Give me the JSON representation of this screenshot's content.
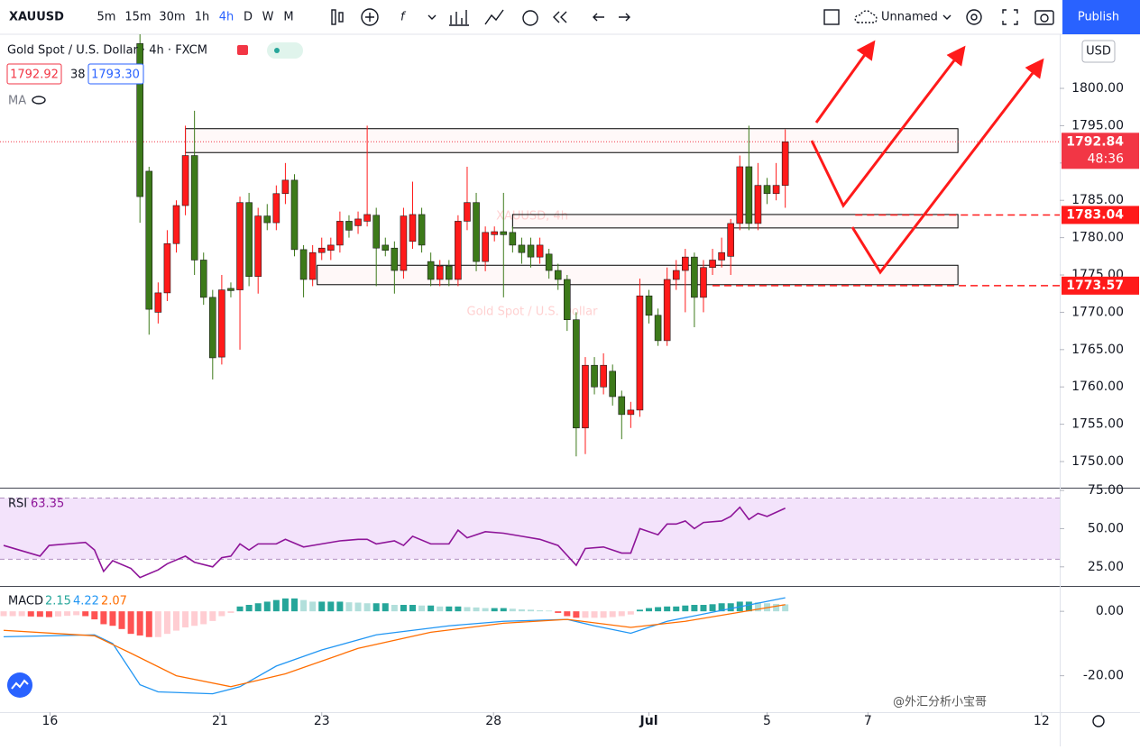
{
  "toolbar": {
    "symbol": "XAUUSD",
    "intervals": [
      "5m",
      "15m",
      "30m",
      "1h",
      "4h",
      "D",
      "W",
      "M"
    ],
    "active_interval": 4,
    "layout_name": "Unnamed",
    "publish": "Publish"
  },
  "legend": {
    "title": "Gold Spot / U.S. Dollar · 4h · FXCM",
    "bid": 1792.92,
    "spread": 38,
    "ask": "1793.30",
    "ma": "MA"
  },
  "watermark": {
    "symbol": "XAUUSD, 4h",
    "description": "Gold Spot / U.S. Dollar"
  },
  "currency": "USD",
  "countdown": "48:36",
  "credit": "@外汇分析小宝哥",
  "chart_data": [
    {
      "type": "candlestick",
      "open": [
        1806,
        1788.9,
        1770,
        1772.6,
        1779.2,
        1784.3,
        1791,
        1777,
        1772,
        1764,
        1773.2,
        1773,
        1784.7,
        1774.8,
        1782.9,
        1782,
        1785.9,
        1787.7,
        1778.4,
        1774.4,
        1778,
        1778.3,
        1779,
        1782.2,
        1781.6,
        1782.2,
        1783,
        1779,
        1778.6,
        1775.6,
        1779.5,
        1783.1,
        1776.8,
        1774.4,
        1776.2,
        1774.4,
        1782.2,
        1784.7,
        1776.8,
        1780.4,
        1780.8,
        1780.7,
        1779,
        1779,
        1777.4,
        1777.8,
        1775.6,
        1774.4,
        1769,
        1754.5,
        1762.9,
        1760,
        1762.1,
        1758.7,
        1756.3,
        1756.9,
        1772.2,
        1769.6,
        1766.2,
        1774.4,
        1775.6,
        1777.4,
        1772,
        1776,
        1777,
        1777.5,
        1781.9,
        1789.5,
        1781.9,
        1787,
        1785.9,
        1787
      ],
      "high": [
        1808,
        1789.5,
        1774,
        1781,
        1785,
        1795,
        1797,
        1778,
        1773,
        1775,
        1774,
        1785.5,
        1786,
        1784,
        1784.5,
        1787,
        1790,
        1788.5,
        1779,
        1779,
        1780,
        1780,
        1783.5,
        1783,
        1783.5,
        1795,
        1784,
        1780,
        1779.5,
        1784,
        1787.5,
        1784,
        1778,
        1777,
        1777,
        1783,
        1789.5,
        1786,
        1781.5,
        1781.5,
        1786,
        1781.5,
        1780,
        1780,
        1780,
        1778.5,
        1776.5,
        1775,
        1770,
        1764,
        1764,
        1764.5,
        1763,
        1759.5,
        1758,
        1774.5,
        1773,
        1770.5,
        1776,
        1777,
        1778.5,
        1778,
        1777,
        1778.5,
        1780,
        1782.5,
        1791,
        1795,
        1790,
        1788,
        1790,
        1794.5
      ],
      "low": [
        1782,
        1767,
        1768.5,
        1771.5,
        1778,
        1783,
        1775,
        1771,
        1761,
        1763,
        1772,
        1765,
        1773.5,
        1772.5,
        1781,
        1781,
        1784.5,
        1777.5,
        1772,
        1773.5,
        1777,
        1777,
        1778,
        1780,
        1780.5,
        1781.5,
        1773.5,
        1777.5,
        1772.5,
        1774.5,
        1778.5,
        1778,
        1773.5,
        1773.5,
        1773.5,
        1773.5,
        1781,
        1775.5,
        1775.5,
        1779.5,
        1772,
        1778,
        1776.5,
        1776,
        1776.5,
        1774.5,
        1773,
        1767.5,
        1750.7,
        1751,
        1759,
        1759,
        1757.5,
        1753,
        1754.5,
        1756,
        1768.5,
        1765.5,
        1765.5,
        1773,
        1770,
        1768,
        1770,
        1775,
        1776,
        1775,
        1781,
        1781,
        1781,
        1784.5,
        1785,
        1784
      ],
      "close": [
        1785.5,
        1770.4,
        1772.6,
        1779.2,
        1784.3,
        1791,
        1777,
        1772,
        1763.9,
        1773,
        1772.9,
        1784.7,
        1774.8,
        1782.9,
        1782,
        1785.9,
        1787.7,
        1778.4,
        1774.4,
        1778,
        1778.6,
        1779,
        1782.2,
        1781,
        1782.5,
        1783.1,
        1778.6,
        1778.3,
        1775.6,
        1782.9,
        1783.1,
        1779,
        1774.4,
        1776.2,
        1774.4,
        1782.2,
        1784.7,
        1776.8,
        1780.7,
        1780.8,
        1780.4,
        1779,
        1778,
        1777.4,
        1779,
        1775.6,
        1774.4,
        1769,
        1754.5,
        1762.9,
        1760,
        1762.9,
        1758.7,
        1756.3,
        1756.9,
        1772.2,
        1769.6,
        1766.2,
        1774.4,
        1775.6,
        1777.4,
        1772,
        1776,
        1777,
        1778,
        1781.9,
        1789.5,
        1781.9,
        1787,
        1785.9,
        1787,
        1792.84
      ],
      "up_color": "#ff1a1a",
      "down_color": "#3d7a1a",
      "last_price_color": "#f23645",
      "xlim": [
        -15.4,
        101.2
      ],
      "ylim": [
        1746.5,
        1807.25
      ],
      "yticks": [
        {
          "value": 1750,
          "label": "1750.00"
        },
        {
          "value": 1755,
          "label": "1755.00"
        },
        {
          "value": 1760,
          "label": "1760.00"
        },
        {
          "value": 1765,
          "label": "1765.00"
        },
        {
          "value": 1770,
          "label": "1770.00"
        },
        {
          "value": 1775,
          "label": "1775.00"
        },
        {
          "value": 1780,
          "label": "1780.00"
        },
        {
          "value": 1785,
          "label": "1785.00"
        },
        {
          "value": 1790,
          "label": "1790.00"
        },
        {
          "value": 1795,
          "label": "1795.00"
        },
        {
          "value": 1800,
          "label": "1800.00"
        }
      ],
      "xticks": [
        {
          "value": -9.9,
          "label": "16"
        },
        {
          "value": 8.8,
          "label": "21"
        },
        {
          "value": 20,
          "label": "23"
        },
        {
          "value": 38.9,
          "label": "28"
        },
        {
          "value": 56,
          "label": "Jul"
        },
        {
          "value": 69,
          "label": "5"
        },
        {
          "value": 80.1,
          "label": "7"
        },
        {
          "value": 99.2,
          "label": "12"
        }
      ],
      "horizontal_lines": [
        {
          "value": 1783.04,
          "x": 78.7
        },
        {
          "value": 1773.57,
          "x": 63
        }
      ],
      "zones": [
        {
          "y": [
            1791.4,
            1794.6
          ],
          "x": [
            5,
            90
          ]
        },
        {
          "y": [
            1781.3,
            1783.1
          ],
          "x": [
            41,
            90
          ]
        },
        {
          "y": [
            1773.7,
            1776.3
          ],
          "x": [
            19.5,
            90
          ]
        }
      ]
    },
    {
      "type": "line",
      "name": "RSI",
      "color": "#8e1599",
      "x": [
        -15,
        -11,
        -10,
        -8,
        -6,
        -5,
        -4,
        -3,
        -1,
        0,
        2,
        3,
        5,
        6,
        8,
        9,
        10,
        11,
        12,
        13,
        15,
        16,
        18,
        20,
        22,
        24,
        25,
        26,
        28,
        29,
        30,
        32,
        34,
        35,
        36,
        38,
        40,
        42,
        44,
        46,
        48,
        49,
        51,
        53,
        54,
        55,
        57,
        58,
        59,
        60,
        61,
        62,
        64,
        65,
        66,
        67,
        68,
        69,
        71
      ],
      "values": [
        39,
        32,
        39,
        40,
        41,
        36,
        22,
        29,
        24,
        18,
        23,
        27,
        32,
        28,
        25,
        31,
        32,
        40,
        36,
        40,
        40,
        43,
        38,
        40,
        42,
        43,
        43,
        40,
        42,
        39,
        45,
        40,
        40,
        49,
        44,
        48,
        47,
        45,
        43,
        39,
        26,
        37,
        38,
        34,
        34,
        50,
        46,
        53,
        53,
        55,
        50,
        54,
        55,
        58,
        64,
        56,
        60,
        58,
        63.35
      ],
      "band": [
        30,
        70
      ],
      "band_color": "#f3e3fb",
      "ylim": [
        12.5,
        76.2
      ],
      "yticks": [
        {
          "value": 25,
          "label": "25.00"
        },
        {
          "value": 50,
          "label": "50.00"
        },
        {
          "value": 75,
          "label": "75.00"
        }
      ]
    },
    {
      "type": "macd",
      "name": "MACD",
      "series": [
        {
          "x": [
            -15,
            -14,
            -13,
            -12,
            -11,
            -10,
            -9,
            -8,
            -7,
            -6,
            -5,
            -4,
            -3,
            -2,
            -1,
            0,
            1,
            2,
            3,
            4,
            5,
            6,
            7,
            8,
            9,
            10,
            11,
            12,
            13,
            14,
            15,
            16,
            17,
            18,
            19,
            20,
            21,
            22,
            23,
            24,
            25,
            26,
            27,
            28,
            29,
            30,
            31,
            32,
            33,
            34,
            35,
            36,
            37,
            38,
            39,
            40,
            41,
            42,
            43,
            44,
            45,
            46,
            47,
            48,
            49,
            50,
            51,
            52,
            53,
            54,
            55,
            56,
            57,
            58,
            59,
            60,
            61,
            62,
            63,
            64,
            65,
            66,
            67,
            68,
            69,
            70,
            71
          ],
          "values": [
            -1.5,
            -1.5,
            -1.5,
            -1.6,
            -1.7,
            -1.8,
            -1.6,
            -1.4,
            -1.2,
            -1.5,
            -2.5,
            -4,
            -4.5,
            -5.5,
            -7,
            -7.5,
            -8,
            -8,
            -7,
            -6,
            -5,
            -4.5,
            -4,
            -3,
            -1.5,
            -0.5,
            1.5,
            2,
            2.5,
            3,
            3.5,
            4,
            4,
            3.5,
            3,
            3,
            3,
            3,
            2.8,
            2.7,
            2.5,
            2.5,
            2.5,
            2,
            2,
            2,
            1.8,
            1.8,
            1.5,
            1.5,
            1.5,
            1.3,
            1.2,
            1,
            1,
            1,
            0.8,
            0.6,
            0.5,
            0.3,
            0.2,
            -0.5,
            -1.5,
            -2,
            -2,
            -2,
            -2,
            -1.8,
            -1.5,
            -1,
            0.5,
            1,
            1.3,
            1.5,
            1.5,
            1.8,
            2,
            2,
            2.2,
            2.5,
            2.5,
            3,
            3,
            2.8,
            2.5,
            2.3,
            2.15
          ],
          "color": "#26a69a"
        },
        {
          "x": [
            -15,
            -5,
            -3,
            0,
            2,
            8,
            11,
            15,
            20,
            26,
            34,
            40,
            47,
            50,
            54,
            58,
            64,
            71
          ],
          "values": [
            -7.9,
            -7.3,
            -10,
            -22.8,
            -25,
            -25.6,
            -23.4,
            -17,
            -12,
            -7.3,
            -4.5,
            -3.1,
            -2.5,
            -4.5,
            -6.8,
            -3.1,
            0.3,
            4.22
          ],
          "color": "#2196f3"
        },
        {
          "x": [
            -15,
            -5,
            -1,
            4,
            10,
            16,
            24,
            32,
            40,
            47,
            54,
            60,
            71
          ],
          "values": [
            -5.9,
            -7.6,
            -13,
            -20,
            -23.4,
            -19.4,
            -11.5,
            -6.5,
            -3.7,
            -2.5,
            -5,
            -3.1,
            2.07
          ],
          "color": "#ff6d00"
        }
      ],
      "histogram_colors": {
        "grow_above": "#26a69a",
        "fall_above": "#b2dfdb",
        "grow_below": "#ffcdd2",
        "fall_below": "#ff5252"
      },
      "ylim": [
        -31.3,
        7.6
      ],
      "yticks": [
        {
          "value": 0,
          "label": "0.00"
        },
        {
          "value": -20,
          "label": "-20.00"
        }
      ]
    }
  ]
}
